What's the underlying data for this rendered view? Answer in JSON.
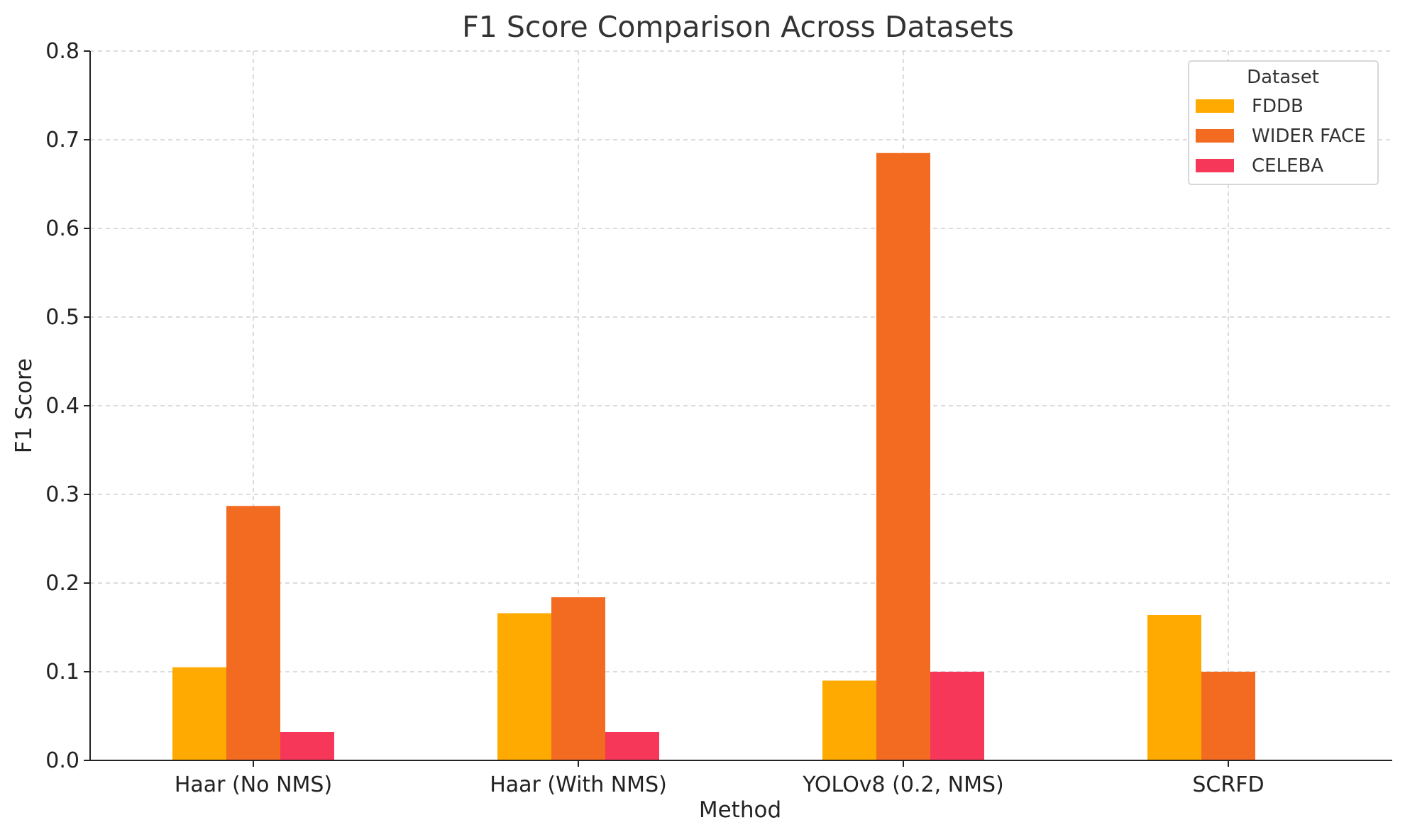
{
  "chart_data": {
    "type": "bar",
    "title": "F1 Score Comparison Across Datasets",
    "xlabel": "Method",
    "ylabel": "F1 Score",
    "categories": [
      "Haar (No NMS)",
      "Haar (With NMS)",
      "YOLOv8 (0.2, NMS)",
      "SCRFD"
    ],
    "series": [
      {
        "name": "FDDB",
        "color": "#FFAA00",
        "values": [
          0.105,
          0.166,
          0.09,
          0.164
        ]
      },
      {
        "name": "WIDER FACE",
        "color": "#F26B21",
        "values": [
          0.287,
          0.184,
          0.685,
          0.1
        ]
      },
      {
        "name": "CELEBA",
        "color": "#F7375A",
        "values": [
          0.032,
          0.032,
          0.1,
          0.0
        ]
      }
    ],
    "ylim": [
      0,
      0.8
    ],
    "yticks": [
      "0.0",
      "0.1",
      "0.2",
      "0.3",
      "0.4",
      "0.5",
      "0.6",
      "0.7",
      "0.8"
    ],
    "grid": true,
    "legend": {
      "title": "Dataset",
      "placement": "top-right"
    }
  }
}
